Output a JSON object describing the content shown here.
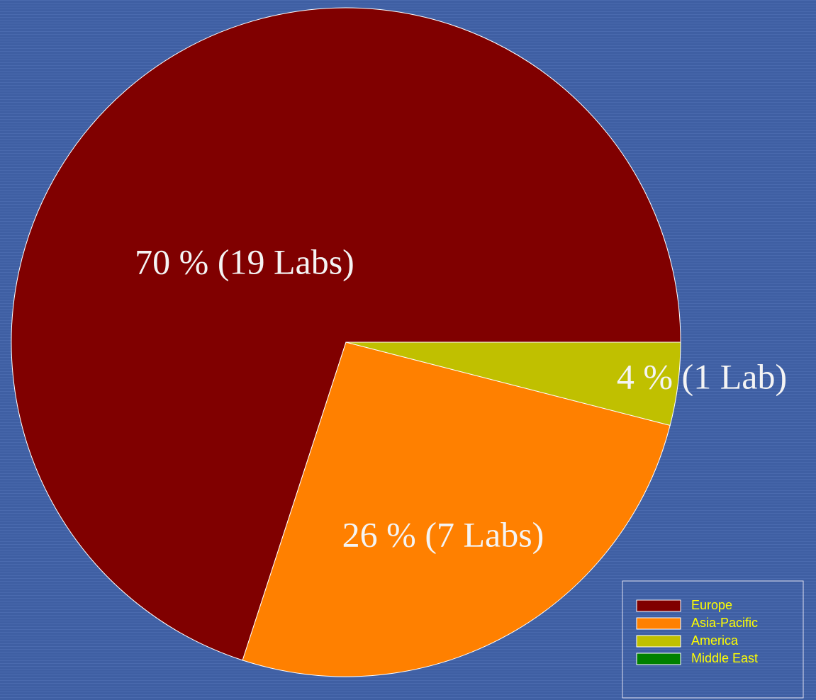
{
  "chart_data": {
    "type": "pie",
    "categories": [
      "Europe",
      "Asia-Pacific",
      "America",
      "Middle East"
    ],
    "values": [
      70,
      26,
      4,
      0
    ],
    "value_labels": [
      "70 % (19 Labs)",
      "26 % (7 Labs)",
      "4 % (1 Lab)",
      null
    ],
    "colors": [
      "#800000",
      "#ff8000",
      "#c0c000",
      "#008000"
    ],
    "legend": "bottom-right"
  }
}
